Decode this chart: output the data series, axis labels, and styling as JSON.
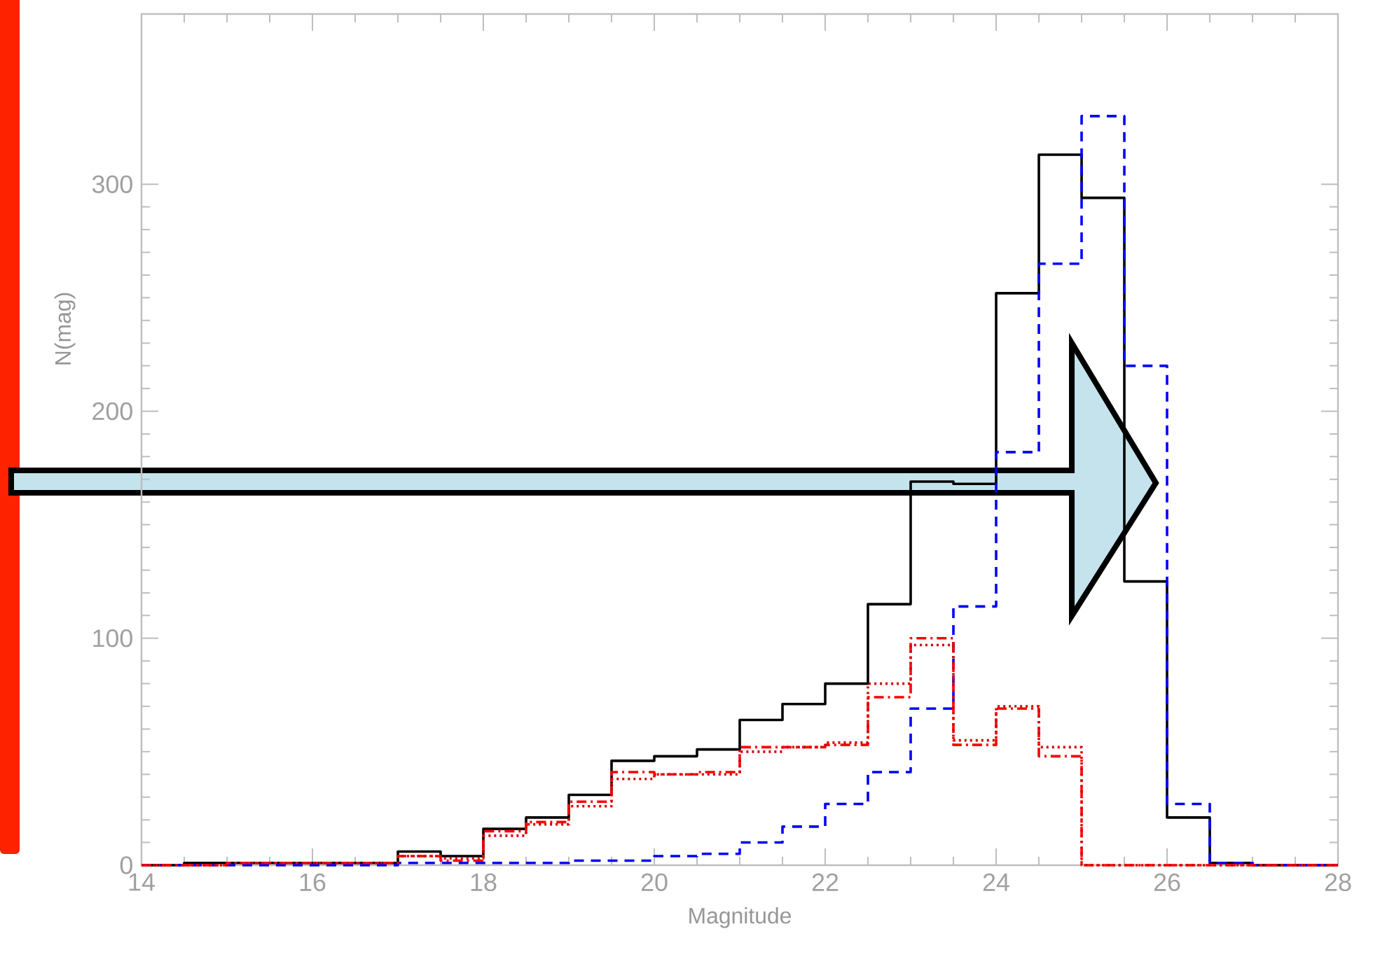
{
  "chart_data": {
    "type": "histogram",
    "xlabel": "Magnitude",
    "ylabel": "N(mag)",
    "bins": [
      14,
      14.5,
      15,
      15.5,
      16,
      16.5,
      17,
      17.5,
      18,
      18.5,
      19,
      19.5,
      20,
      20.5,
      21,
      21.5,
      22,
      22.5,
      23,
      23.5,
      24,
      24.5,
      25,
      25.5,
      26,
      26.5,
      27,
      27.5,
      28
    ],
    "series": [
      {
        "color": "#000000",
        "line_style": "solid",
        "values": [
          0,
          1,
          1,
          1,
          1,
          1,
          6,
          4,
          16,
          21,
          31,
          46,
          48,
          51,
          64,
          71,
          80,
          115,
          169,
          168,
          252,
          313,
          294,
          125,
          21,
          1,
          0,
          0
        ]
      },
      {
        "color": "#0000ff",
        "line_style": "dashed",
        "values": [
          0,
          0,
          0,
          0,
          0,
          0,
          1,
          1,
          1,
          1,
          2,
          2,
          4,
          5,
          10,
          17,
          27,
          41,
          69,
          114,
          182,
          265,
          330,
          220,
          27,
          1,
          0,
          0
        ]
      },
      {
        "color": "#ff0000",
        "line_style": "dashdot",
        "values": [
          0,
          0,
          1,
          1,
          1,
          1,
          4,
          2,
          15,
          19,
          28,
          41,
          40,
          41,
          52,
          52,
          53,
          74,
          100,
          53,
          69,
          48,
          0,
          0,
          0,
          0,
          0,
          0
        ]
      },
      {
        "color": "#d40000",
        "line_style": "dotted",
        "values": [
          0,
          0,
          1,
          1,
          1,
          1,
          4,
          3,
          13,
          18,
          26,
          38,
          40,
          40,
          50,
          52,
          54,
          80,
          97,
          55,
          70,
          52,
          0,
          0,
          0,
          0,
          0,
          0
        ]
      }
    ],
    "xlim": [
      14,
      28
    ],
    "ylim": [
      0,
      375
    ],
    "xticks": [
      14,
      16,
      18,
      20,
      22,
      24,
      26,
      28
    ],
    "yticks": [
      0,
      100,
      200,
      300
    ]
  }
}
